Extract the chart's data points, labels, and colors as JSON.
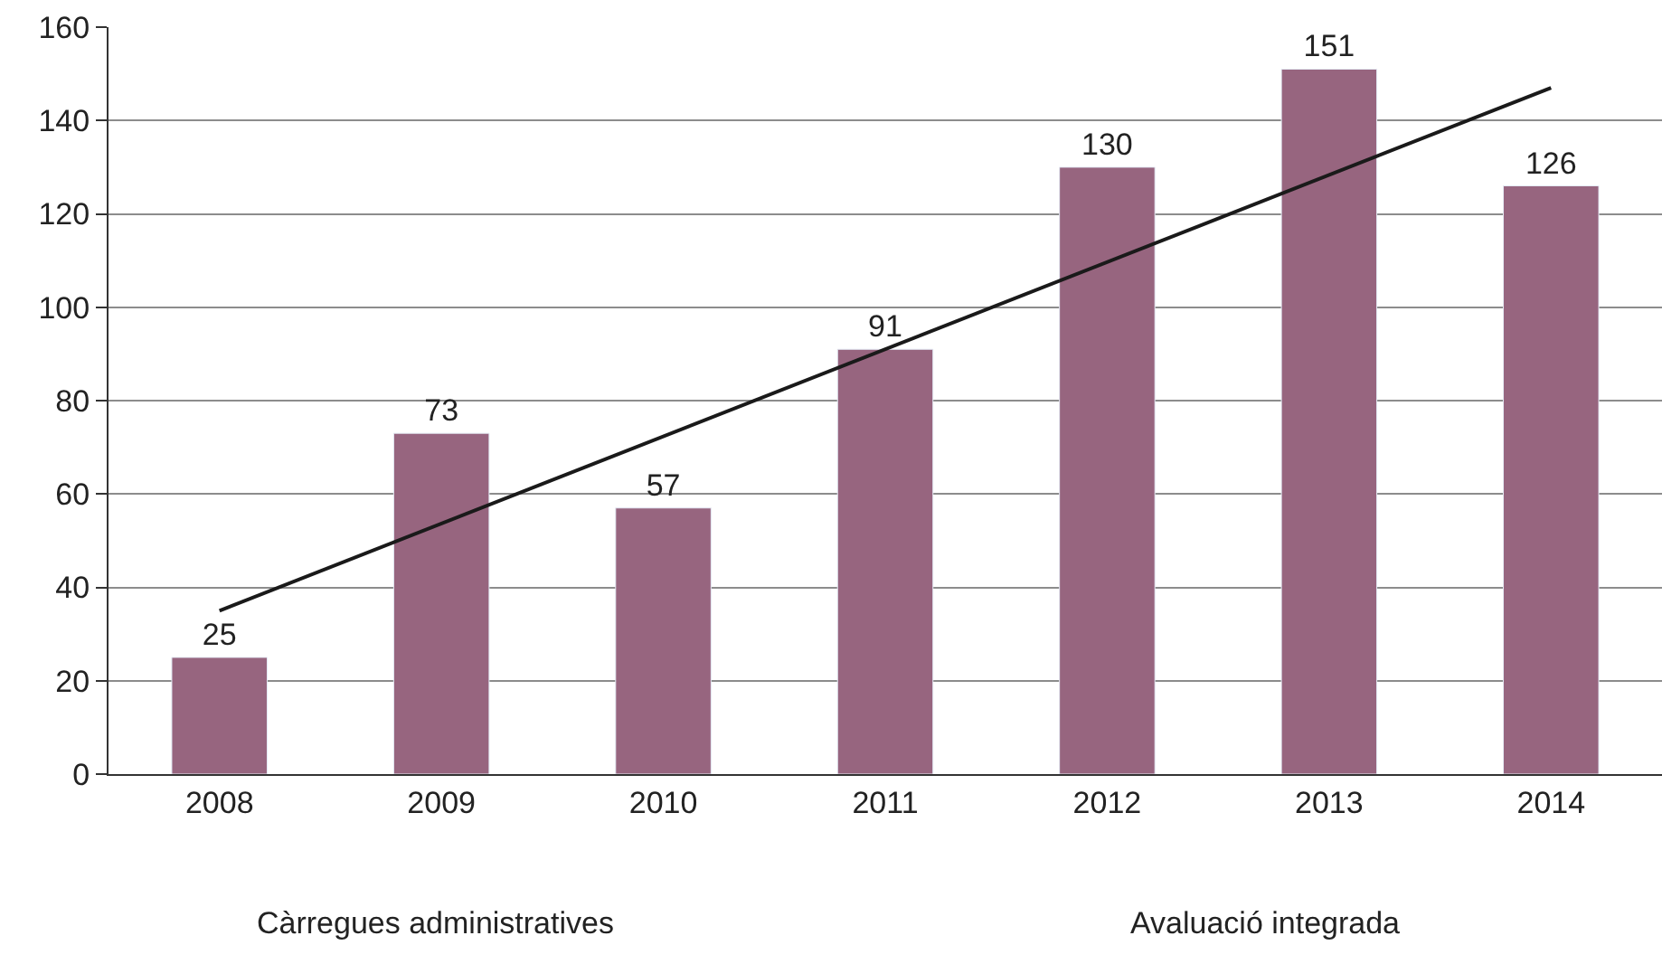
{
  "chart_data": {
    "type": "bar",
    "categories": [
      "2008",
      "2009",
      "2010",
      "2011",
      "2012",
      "2013",
      "2014"
    ],
    "series": [
      {
        "color": "#97657f",
        "values": [
          25,
          73,
          57,
          91,
          130,
          151,
          126
        ],
        "value_labels": [
          "25",
          "73",
          "57",
          "91",
          "130",
          "151",
          "126"
        ]
      },
      {
        "type": "line",
        "color": "#1a1a1a",
        "values": [
          35,
          null,
          null,
          null,
          null,
          null,
          147
        ]
      }
    ],
    "ylim": [
      0,
      160
    ],
    "yticks": [
      0,
      20,
      40,
      60,
      80,
      100,
      120,
      140,
      160
    ],
    "grid": "y",
    "marker": "none",
    "annotations": [
      "Càrregues administratives",
      "Avaluació integrada"
    ]
  }
}
